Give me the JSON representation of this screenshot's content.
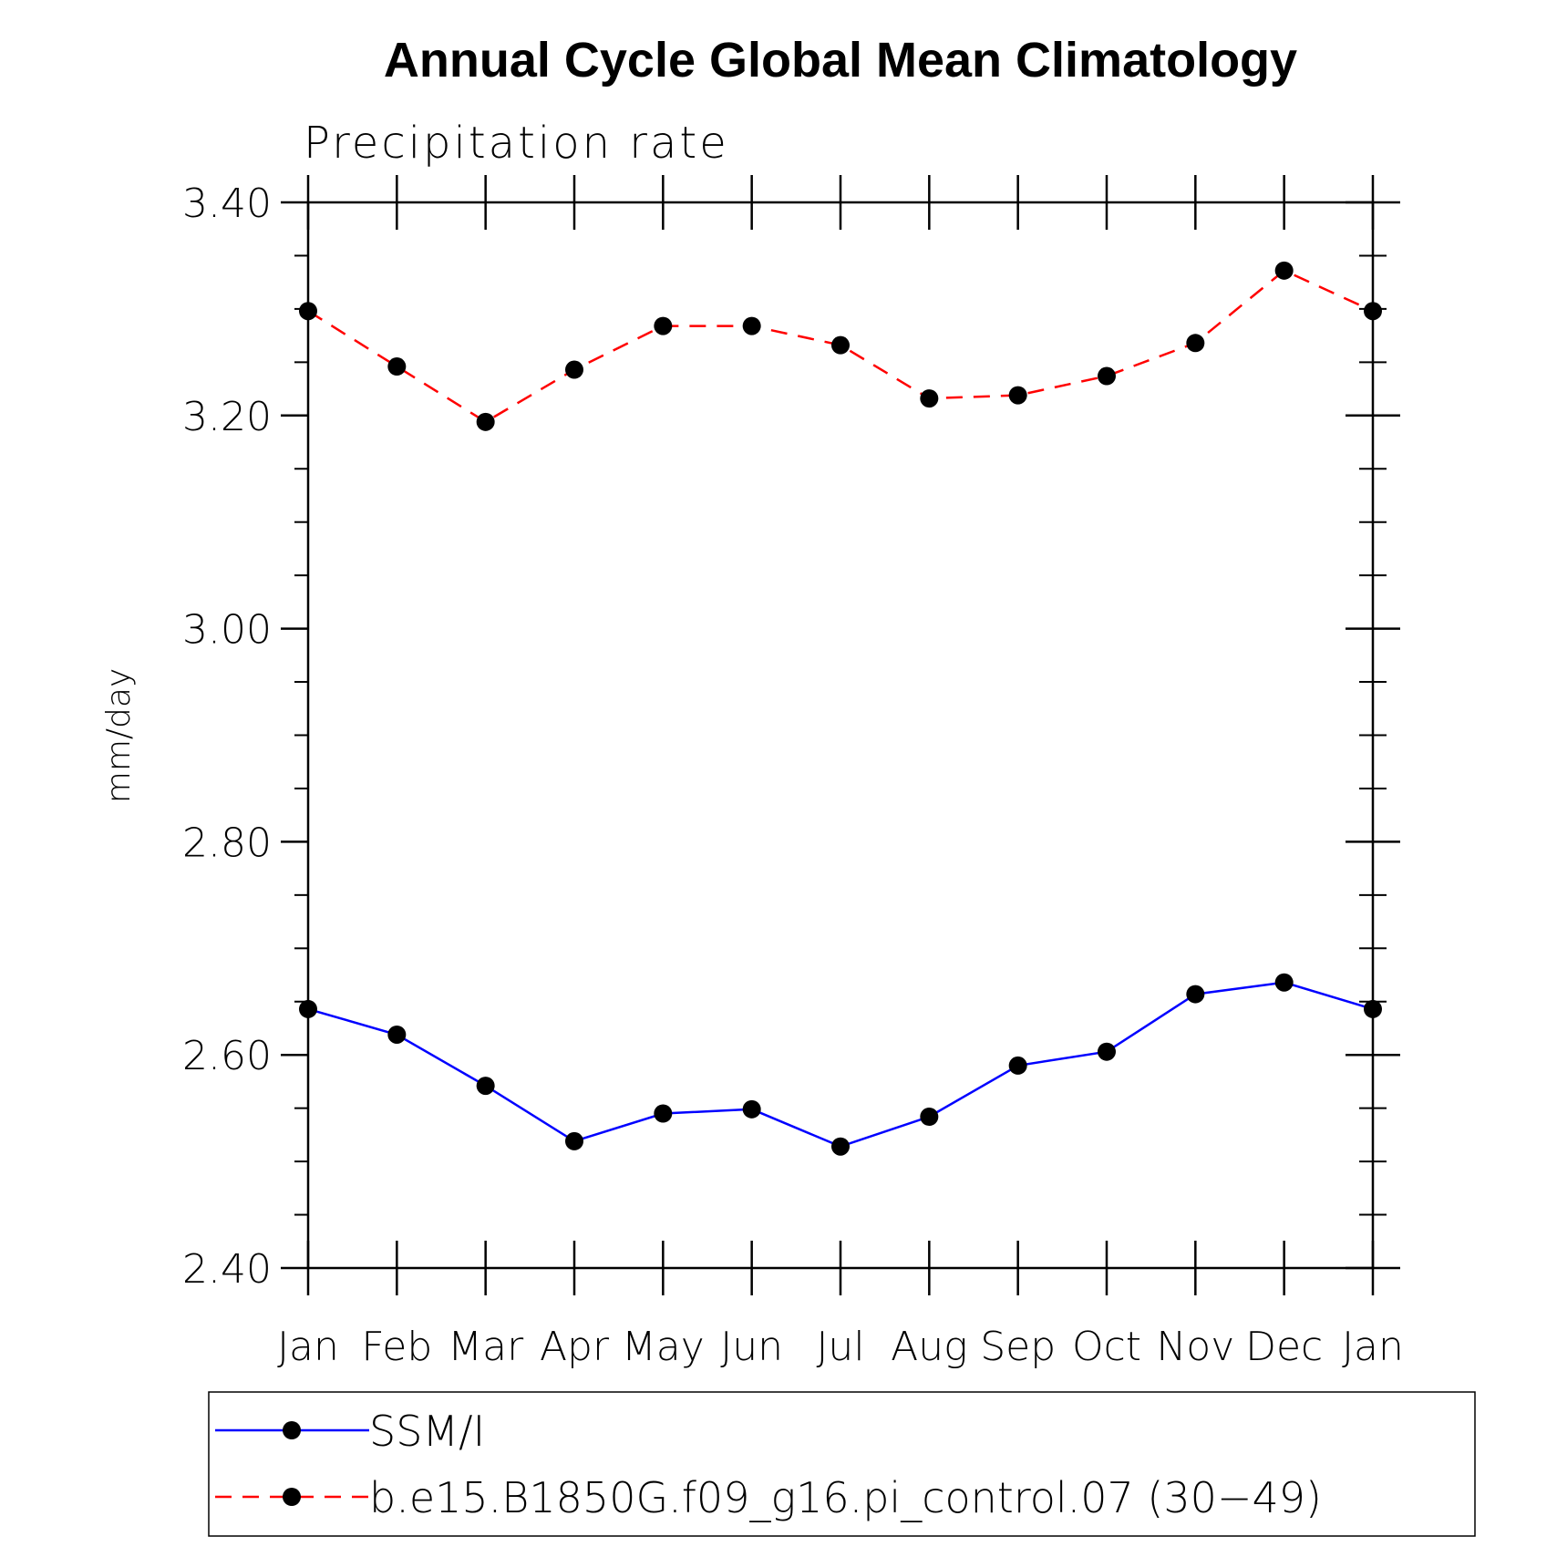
{
  "chart_data": {
    "type": "line",
    "title": "Annual Cycle Global Mean Climatology",
    "subtitle": "Precipitation rate",
    "xlabel": "",
    "ylabel": "mm/day",
    "ylim": [
      2.4,
      3.4
    ],
    "y_ticks": [
      "2.40",
      "2.60",
      "2.80",
      "3.00",
      "3.20",
      "3.40"
    ],
    "categories": [
      "Jan",
      "Feb",
      "Mar",
      "Apr",
      "May",
      "Jun",
      "Jul",
      "Aug",
      "Sep",
      "Oct",
      "Nov",
      "Dec",
      "Jan"
    ],
    "legend_position": "bottom",
    "grid": false,
    "series": [
      {
        "name": "SSM/I",
        "color": "#0000ff",
        "dash": "solid",
        "values": [
          2.643,
          2.619,
          2.571,
          2.519,
          2.545,
          2.549,
          2.514,
          2.542,
          2.59,
          2.603,
          2.657,
          2.668,
          2.643
        ]
      },
      {
        "name": "b.e15.B1850G.f09_g16.pi_control.07 (30−49)",
        "color": "#ff0000",
        "dash": "dashed",
        "values": [
          3.298,
          3.246,
          3.194,
          3.243,
          3.284,
          3.284,
          3.266,
          3.216,
          3.219,
          3.237,
          3.268,
          3.336,
          3.298
        ]
      }
    ]
  }
}
